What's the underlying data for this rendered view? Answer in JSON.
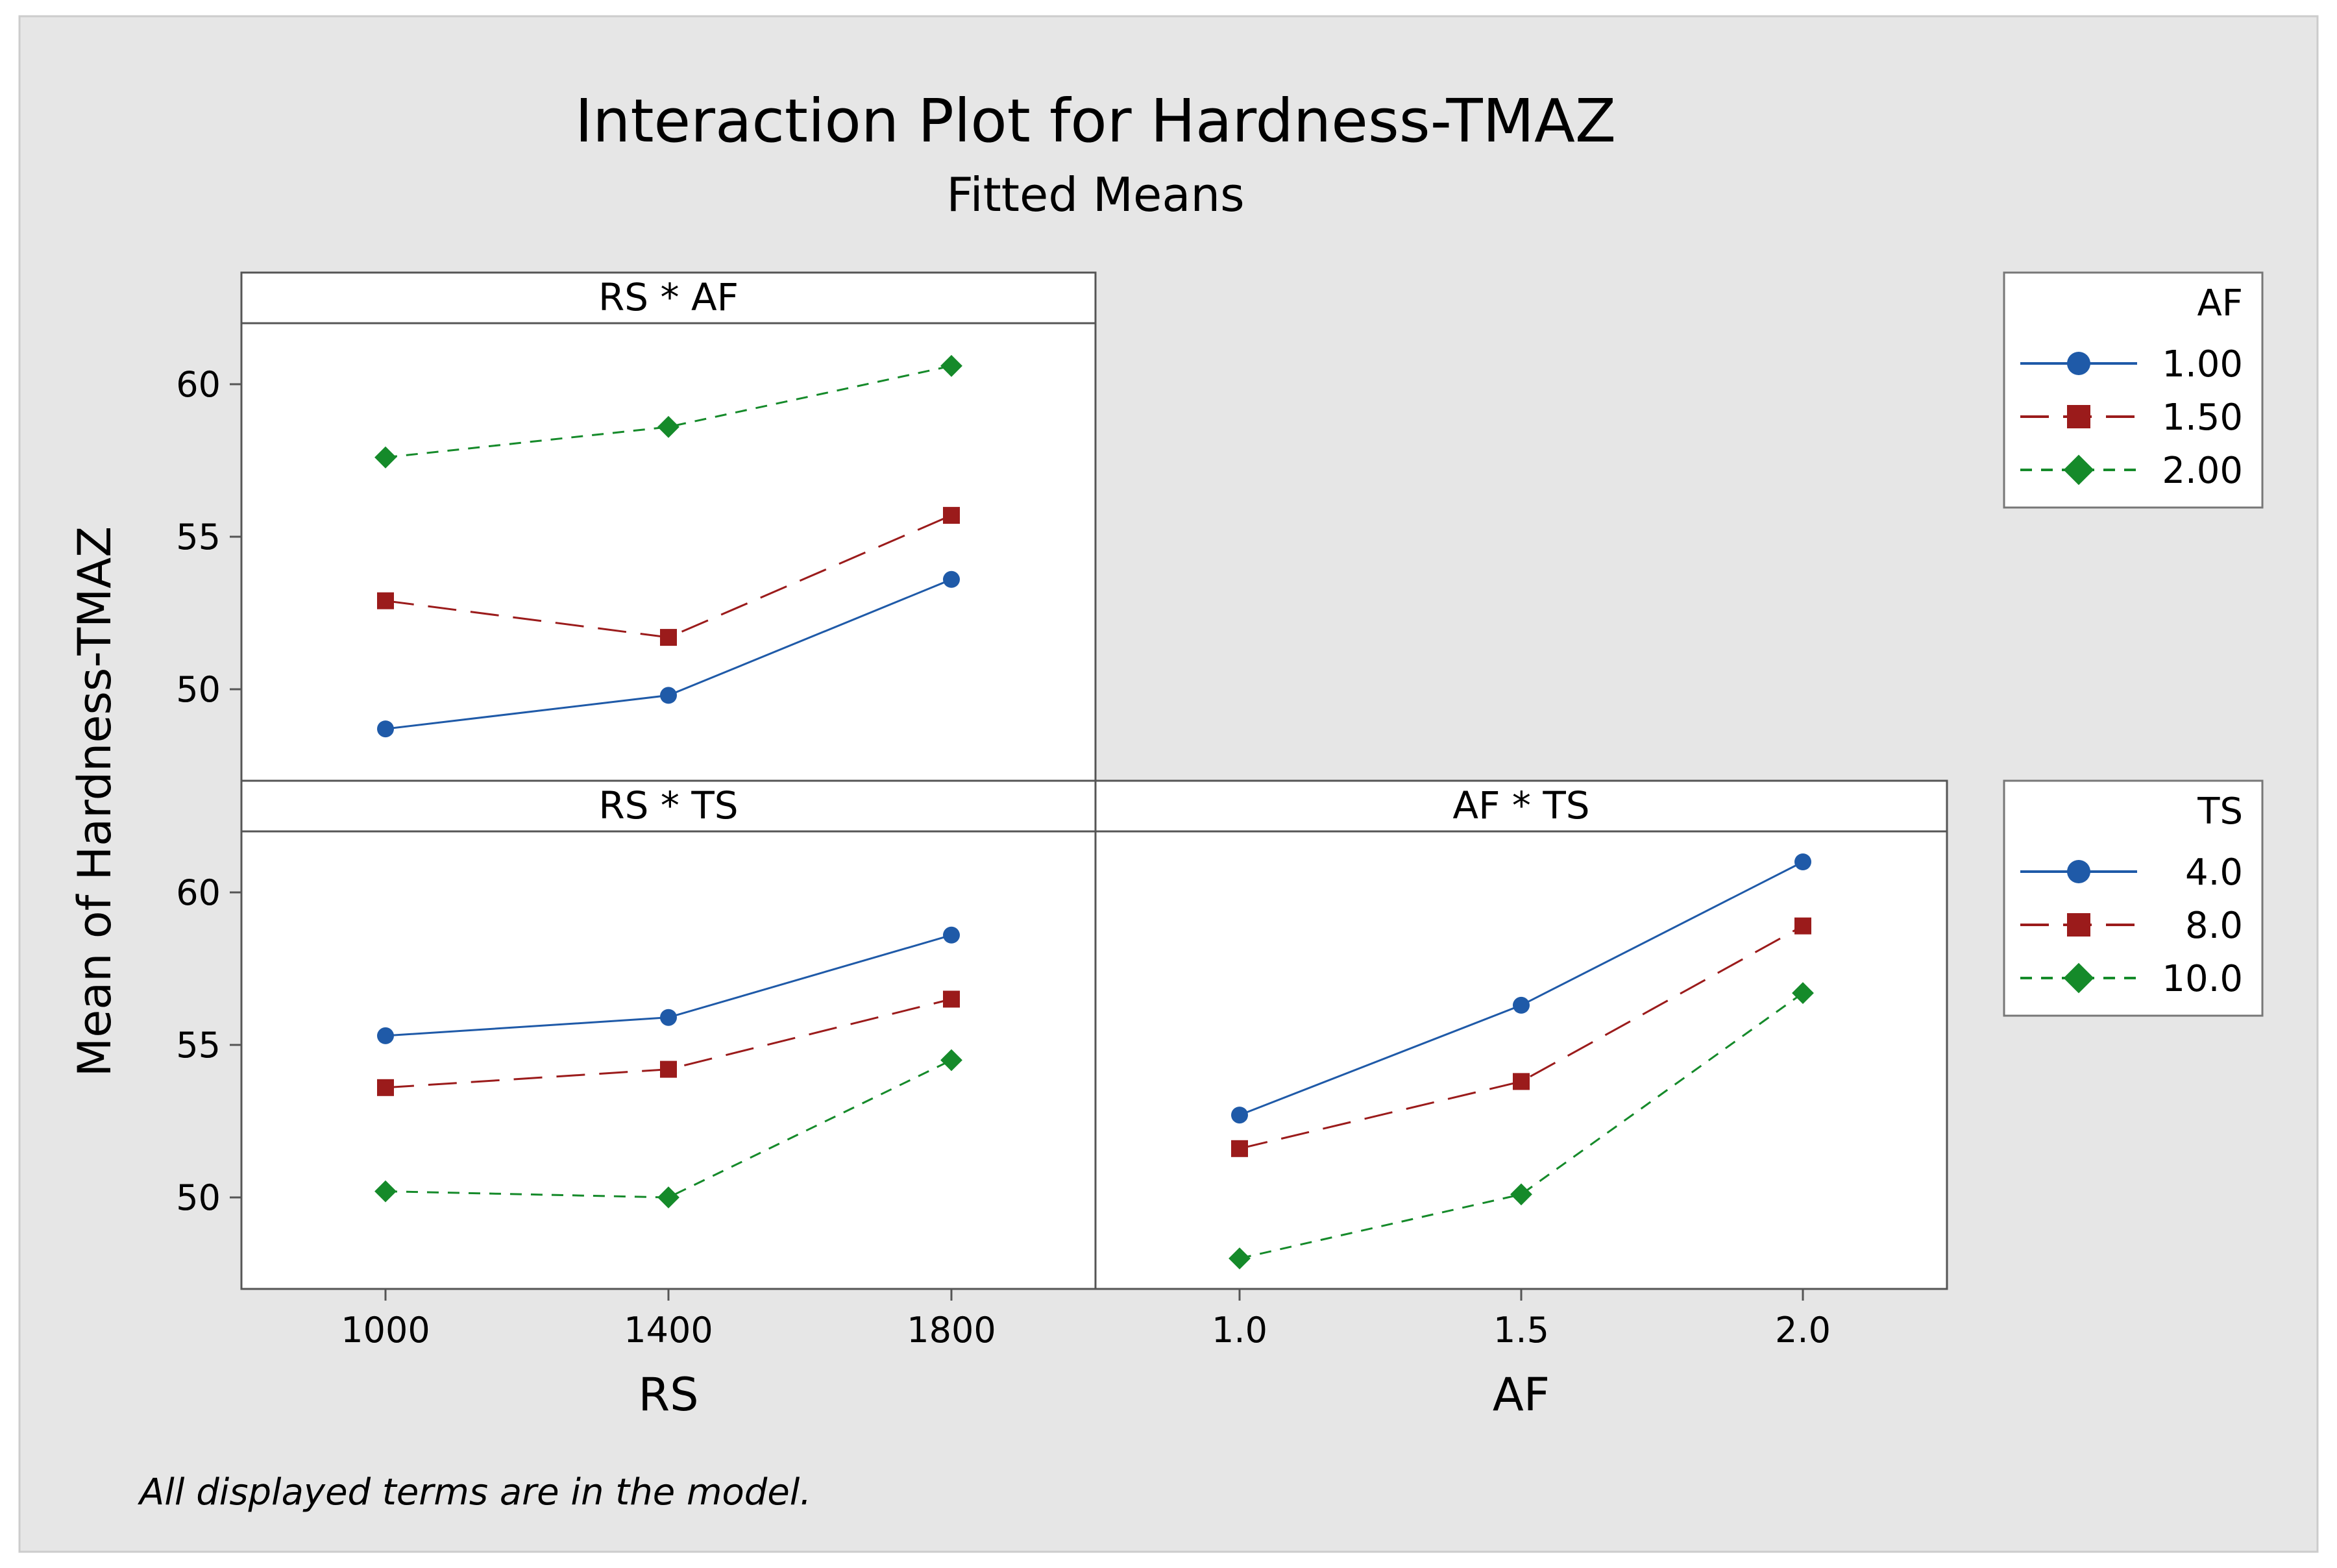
{
  "title": "Interaction Plot for Hardness-TMAZ",
  "subtitle": "Fitted Means",
  "ylabel": "Mean of Hardness-TMAZ",
  "footnote": "All displayed terms are in the model.",
  "colors": {
    "background": "#e6e6e6",
    "series": [
      "#1f5aa8",
      "#9b1b1b",
      "#158a2a"
    ]
  },
  "chart_data": [
    {
      "type": "line",
      "panel": "RS * AF",
      "title": "RS * AF",
      "x": [
        1000,
        1400,
        1800
      ],
      "x_ticks": [
        "1000",
        "1400",
        "1800"
      ],
      "xlabel": "RS",
      "ylim": [
        47,
        62
      ],
      "y_ticks": [
        50,
        55,
        60
      ],
      "legend": "AF",
      "series": [
        {
          "name": "1.00",
          "values": [
            48.7,
            49.8,
            53.6
          ]
        },
        {
          "name": "1.50",
          "values": [
            52.9,
            51.7,
            55.7
          ]
        },
        {
          "name": "2.00",
          "values": [
            57.6,
            58.6,
            60.6
          ]
        }
      ]
    },
    {
      "type": "line",
      "panel": "RS * TS",
      "title": "RS * TS",
      "x": [
        1000,
        1400,
        1800
      ],
      "x_ticks": [
        "1000",
        "1400",
        "1800"
      ],
      "xlabel": "RS",
      "ylim": [
        47,
        62
      ],
      "y_ticks": [
        50,
        55,
        60
      ],
      "legend": "TS",
      "series": [
        {
          "name": "4.0",
          "values": [
            55.3,
            55.9,
            58.6
          ]
        },
        {
          "name": "8.0",
          "values": [
            53.6,
            54.2,
            56.5
          ]
        },
        {
          "name": "10.0",
          "values": [
            50.2,
            50.0,
            54.5
          ]
        }
      ]
    },
    {
      "type": "line",
      "panel": "AF * TS",
      "title": "AF * TS",
      "x": [
        1.0,
        1.5,
        2.0
      ],
      "x_ticks": [
        "1.0",
        "1.5",
        "2.0"
      ],
      "xlabel": "AF",
      "ylim": [
        47,
        62
      ],
      "y_ticks": [],
      "legend": "TS",
      "series": [
        {
          "name": "4.0",
          "values": [
            52.7,
            56.3,
            61.0
          ]
        },
        {
          "name": "8.0",
          "values": [
            51.6,
            53.8,
            58.9
          ]
        },
        {
          "name": "10.0",
          "values": [
            48.0,
            50.1,
            56.7
          ]
        }
      ]
    }
  ],
  "legends": [
    {
      "title": "AF",
      "entries": [
        "1.00",
        "1.50",
        "2.00"
      ]
    },
    {
      "title": "TS",
      "entries": [
        "4.0",
        "8.0",
        "10.0"
      ]
    }
  ]
}
